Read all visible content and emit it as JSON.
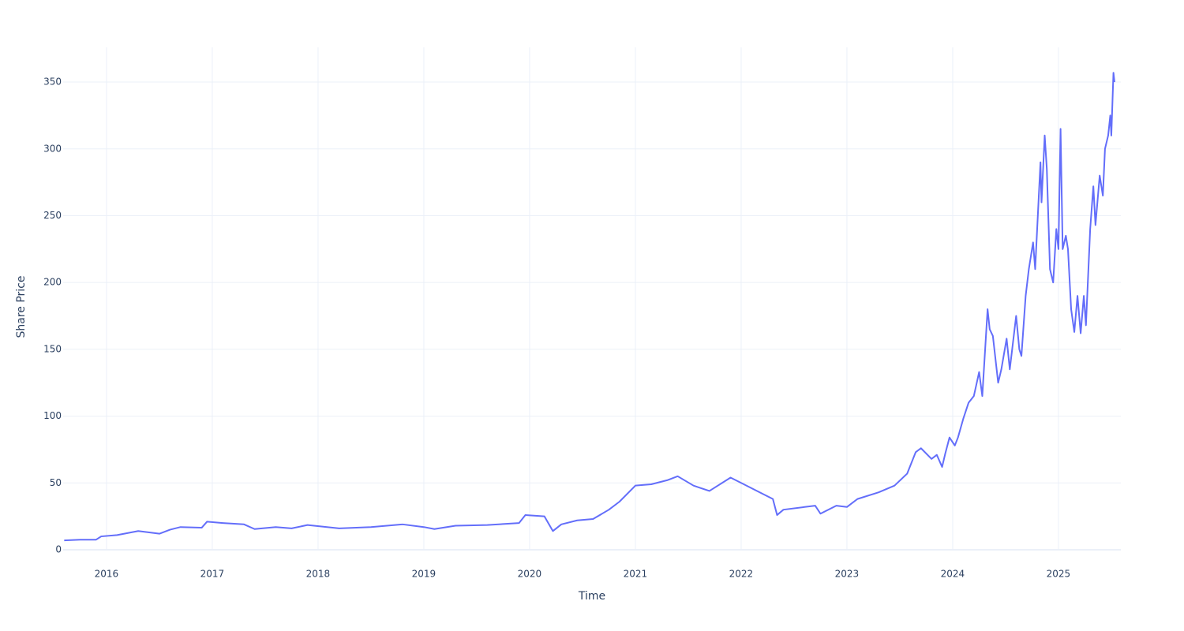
{
  "chart_data": {
    "type": "line",
    "x_label": "Time",
    "y_label": "Share Price",
    "x": [
      2015.6,
      2015.75,
      2015.9,
      2015.95,
      2016.1,
      2016.3,
      2016.5,
      2016.6,
      2016.7,
      2016.9,
      2016.95,
      2017.1,
      2017.3,
      2017.4,
      2017.6,
      2017.75,
      2017.9,
      2018.2,
      2018.5,
      2018.8,
      2019.0,
      2019.1,
      2019.3,
      2019.6,
      2019.9,
      2019.96,
      2020.14,
      2020.22,
      2020.3,
      2020.45,
      2020.6,
      2020.75,
      2020.85,
      2021.0,
      2021.15,
      2021.3,
      2021.4,
      2021.55,
      2021.7,
      2021.9,
      2022.0,
      2022.2,
      2022.3,
      2022.34,
      2022.4,
      2022.6,
      2022.7,
      2022.75,
      2022.9,
      2023.0,
      2023.1,
      2023.3,
      2023.45,
      2023.57,
      2023.65,
      2023.7,
      2023.8,
      2023.85,
      2023.9,
      2023.93,
      2023.97,
      2024.02,
      2024.05,
      2024.1,
      2024.15,
      2024.2,
      2024.25,
      2024.28,
      2024.33,
      2024.35,
      2024.38,
      2024.43,
      2024.46,
      2024.51,
      2024.54,
      2024.6,
      2024.63,
      2024.65,
      2024.69,
      2024.72,
      2024.76,
      2024.78,
      2024.83,
      2024.84,
      2024.87,
      2024.89,
      2024.92,
      2024.95,
      2024.98,
      2025.0,
      2025.02,
      2025.04,
      2025.07,
      2025.09,
      2025.12,
      2025.15,
      2025.18,
      2025.21,
      2025.24,
      2025.26,
      2025.3,
      2025.33,
      2025.35,
      2025.39,
      2025.42,
      2025.44,
      2025.47,
      2025.49,
      2025.5,
      2025.52,
      2025.53
    ],
    "series": [
      {
        "name": "Share Price",
        "color": "#636efa",
        "values": [
          7,
          7.5,
          7.5,
          10,
          11,
          14,
          12,
          15,
          17,
          16.5,
          21,
          20,
          19,
          15.5,
          17,
          16,
          18.5,
          16,
          17,
          19,
          17,
          15.5,
          18,
          18.5,
          20,
          26,
          25,
          14,
          19,
          22,
          23,
          30,
          36,
          48,
          49,
          52,
          55,
          48,
          44,
          54,
          50,
          42,
          38,
          26,
          30,
          32,
          33,
          27,
          33,
          32,
          38,
          43,
          48,
          57,
          73,
          76,
          68,
          71,
          62,
          72,
          84,
          78,
          84,
          98,
          110,
          115,
          133,
          115,
          180,
          165,
          160,
          125,
          135,
          158,
          135,
          175,
          150,
          145,
          190,
          210,
          230,
          210,
          290,
          260,
          310,
          285,
          210,
          200,
          240,
          225,
          315,
          225,
          235,
          225,
          180,
          163,
          190,
          162,
          190,
          168,
          240,
          272,
          243,
          280,
          265,
          300,
          310,
          325,
          310,
          357,
          350
        ]
      }
    ],
    "xlim": [
      2015.59,
      2025.59
    ],
    "xticks": [
      2016,
      2017,
      2018,
      2019,
      2020,
      2021,
      2022,
      2023,
      2024,
      2025
    ],
    "ylim": [
      0,
      376
    ],
    "yticks": [
      0,
      50,
      100,
      150,
      200,
      250,
      300,
      350
    ],
    "grid": true
  }
}
